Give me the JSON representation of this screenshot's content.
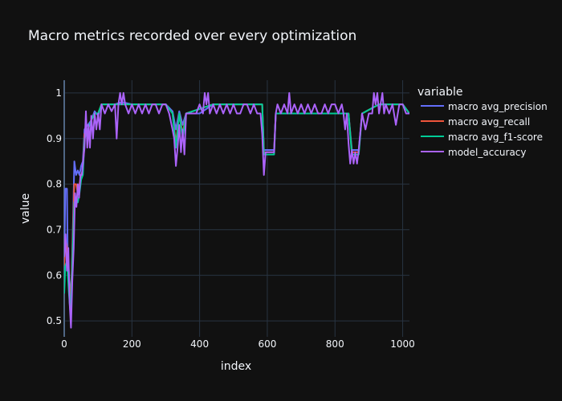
{
  "chart_data": {
    "type": "line",
    "title": "Macro metrics recorded over every optimization",
    "xlabel": "index",
    "ylabel": "value",
    "xlim": [
      0,
      1020
    ],
    "ylim": [
      0.465,
      1.028
    ],
    "x_ticks": [
      0,
      200,
      400,
      600,
      800,
      1000
    ],
    "y_ticks": [
      0.5,
      0.6,
      0.7,
      0.8,
      0.9,
      1
    ],
    "grid": true,
    "legend_title": "variable",
    "legend_position": "right",
    "colors": {
      "background": "#111111",
      "plot_bg": "#111111",
      "grid": "#283442",
      "text": "#f2f5fa"
    },
    "series": [
      {
        "name": "macro avg_precision",
        "color": "#636efa",
        "points": [
          [
            0,
            0.6
          ],
          [
            3,
            0.79
          ],
          [
            8,
            0.79
          ],
          [
            10,
            0.66
          ],
          [
            14,
            0.6
          ],
          [
            18,
            0.55
          ],
          [
            22,
            0.6
          ],
          [
            26,
            0.72
          ],
          [
            30,
            0.85
          ],
          [
            35,
            0.82
          ],
          [
            40,
            0.83
          ],
          [
            45,
            0.82
          ],
          [
            50,
            0.84
          ],
          [
            55,
            0.85
          ],
          [
            60,
            0.92
          ],
          [
            70,
            0.93
          ],
          [
            80,
            0.94
          ],
          [
            90,
            0.96
          ],
          [
            100,
            0.95
          ],
          [
            110,
            0.975
          ],
          [
            130,
            0.975
          ],
          [
            150,
            0.975
          ],
          [
            170,
            0.98
          ],
          [
            200,
            0.975
          ],
          [
            260,
            0.975
          ],
          [
            300,
            0.975
          ],
          [
            320,
            0.96
          ],
          [
            330,
            0.92
          ],
          [
            340,
            0.96
          ],
          [
            350,
            0.93
          ],
          [
            360,
            0.955
          ],
          [
            400,
            0.955
          ],
          [
            440,
            0.975
          ],
          [
            500,
            0.975
          ],
          [
            560,
            0.975
          ],
          [
            585,
            0.975
          ],
          [
            590,
            0.875
          ],
          [
            620,
            0.875
          ],
          [
            625,
            0.955
          ],
          [
            700,
            0.955
          ],
          [
            780,
            0.955
          ],
          [
            840,
            0.955
          ],
          [
            850,
            0.875
          ],
          [
            870,
            0.875
          ],
          [
            880,
            0.955
          ],
          [
            930,
            0.975
          ],
          [
            1000,
            0.975
          ],
          [
            1020,
            0.955
          ]
        ]
      },
      {
        "name": "macro avg_recall",
        "color": "#ef553b",
        "points": [
          [
            0,
            0.62
          ],
          [
            3,
            0.68
          ],
          [
            8,
            0.66
          ],
          [
            10,
            0.63
          ],
          [
            14,
            0.58
          ],
          [
            18,
            0.54
          ],
          [
            22,
            0.6
          ],
          [
            26,
            0.7
          ],
          [
            30,
            0.8
          ],
          [
            35,
            0.8
          ],
          [
            40,
            0.78
          ],
          [
            45,
            0.8
          ],
          [
            50,
            0.82
          ],
          [
            55,
            0.83
          ],
          [
            60,
            0.91
          ],
          [
            70,
            0.92
          ],
          [
            80,
            0.94
          ],
          [
            90,
            0.955
          ],
          [
            100,
            0.955
          ],
          [
            110,
            0.975
          ],
          [
            200,
            0.975
          ],
          [
            300,
            0.975
          ],
          [
            320,
            0.955
          ],
          [
            330,
            0.89
          ],
          [
            340,
            0.955
          ],
          [
            350,
            0.91
          ],
          [
            360,
            0.955
          ],
          [
            440,
            0.975
          ],
          [
            585,
            0.975
          ],
          [
            590,
            0.87
          ],
          [
            620,
            0.87
          ],
          [
            625,
            0.955
          ],
          [
            840,
            0.955
          ],
          [
            850,
            0.87
          ],
          [
            870,
            0.87
          ],
          [
            880,
            0.955
          ],
          [
            930,
            0.975
          ],
          [
            1000,
            0.975
          ],
          [
            1020,
            0.955
          ]
        ]
      },
      {
        "name": "macro avg_f1-score",
        "color": "#00cc96",
        "points": [
          [
            0,
            0.56
          ],
          [
            3,
            0.62
          ],
          [
            8,
            0.63
          ],
          [
            10,
            0.61
          ],
          [
            14,
            0.56
          ],
          [
            18,
            0.52
          ],
          [
            22,
            0.58
          ],
          [
            26,
            0.68
          ],
          [
            30,
            0.76
          ],
          [
            35,
            0.77
          ],
          [
            40,
            0.76
          ],
          [
            45,
            0.78
          ],
          [
            50,
            0.81
          ],
          [
            55,
            0.82
          ],
          [
            60,
            0.9
          ],
          [
            70,
            0.92
          ],
          [
            80,
            0.94
          ],
          [
            90,
            0.955
          ],
          [
            100,
            0.955
          ],
          [
            110,
            0.975
          ],
          [
            200,
            0.975
          ],
          [
            300,
            0.975
          ],
          [
            320,
            0.955
          ],
          [
            330,
            0.88
          ],
          [
            340,
            0.955
          ],
          [
            350,
            0.9
          ],
          [
            360,
            0.955
          ],
          [
            440,
            0.975
          ],
          [
            585,
            0.975
          ],
          [
            590,
            0.865
          ],
          [
            620,
            0.865
          ],
          [
            625,
            0.955
          ],
          [
            840,
            0.955
          ],
          [
            850,
            0.865
          ],
          [
            870,
            0.865
          ],
          [
            880,
            0.955
          ],
          [
            930,
            0.975
          ],
          [
            1000,
            0.975
          ],
          [
            1020,
            0.955
          ]
        ]
      },
      {
        "name": "model_accuracy",
        "color": "#ab63fa",
        "points": [
          [
            0,
            0.64
          ],
          [
            4,
            0.69
          ],
          [
            8,
            0.61
          ],
          [
            12,
            0.66
          ],
          [
            16,
            0.54
          ],
          [
            20,
            0.485
          ],
          [
            24,
            0.59
          ],
          [
            28,
            0.66
          ],
          [
            32,
            0.78
          ],
          [
            36,
            0.75
          ],
          [
            40,
            0.8
          ],
          [
            44,
            0.77
          ],
          [
            48,
            0.82
          ],
          [
            52,
            0.82
          ],
          [
            56,
            0.85
          ],
          [
            60,
            0.88
          ],
          [
            64,
            0.96
          ],
          [
            68,
            0.88
          ],
          [
            72,
            0.93
          ],
          [
            76,
            0.88
          ],
          [
            80,
            0.95
          ],
          [
            85,
            0.9
          ],
          [
            90,
            0.955
          ],
          [
            95,
            0.92
          ],
          [
            100,
            0.955
          ],
          [
            105,
            0.92
          ],
          [
            110,
            0.975
          ],
          [
            120,
            0.955
          ],
          [
            130,
            0.975
          ],
          [
            140,
            0.96
          ],
          [
            150,
            0.975
          ],
          [
            155,
            0.9
          ],
          [
            160,
            0.975
          ],
          [
            165,
            1.0
          ],
          [
            170,
            0.975
          ],
          [
            175,
            1.0
          ],
          [
            180,
            0.975
          ],
          [
            190,
            0.955
          ],
          [
            200,
            0.975
          ],
          [
            210,
            0.955
          ],
          [
            220,
            0.975
          ],
          [
            230,
            0.955
          ],
          [
            240,
            0.975
          ],
          [
            250,
            0.955
          ],
          [
            260,
            0.975
          ],
          [
            270,
            0.975
          ],
          [
            280,
            0.955
          ],
          [
            290,
            0.975
          ],
          [
            300,
            0.975
          ],
          [
            310,
            0.955
          ],
          [
            320,
            0.92
          ],
          [
            325,
            0.9
          ],
          [
            330,
            0.84
          ],
          [
            335,
            0.88
          ],
          [
            340,
            0.93
          ],
          [
            345,
            0.87
          ],
          [
            350,
            0.92
          ],
          [
            355,
            0.865
          ],
          [
            360,
            0.955
          ],
          [
            370,
            0.955
          ],
          [
            380,
            0.955
          ],
          [
            390,
            0.955
          ],
          [
            400,
            0.975
          ],
          [
            410,
            0.955
          ],
          [
            415,
            1.0
          ],
          [
            420,
            0.975
          ],
          [
            425,
            1.0
          ],
          [
            430,
            0.955
          ],
          [
            440,
            0.975
          ],
          [
            450,
            0.955
          ],
          [
            460,
            0.975
          ],
          [
            470,
            0.955
          ],
          [
            480,
            0.975
          ],
          [
            490,
            0.955
          ],
          [
            500,
            0.975
          ],
          [
            510,
            0.955
          ],
          [
            520,
            0.955
          ],
          [
            530,
            0.975
          ],
          [
            540,
            0.975
          ],
          [
            550,
            0.955
          ],
          [
            560,
            0.975
          ],
          [
            570,
            0.955
          ],
          [
            580,
            0.955
          ],
          [
            585,
            0.91
          ],
          [
            590,
            0.82
          ],
          [
            595,
            0.87
          ],
          [
            600,
            0.87
          ],
          [
            610,
            0.87
          ],
          [
            620,
            0.87
          ],
          [
            625,
            0.955
          ],
          [
            630,
            0.975
          ],
          [
            640,
            0.955
          ],
          [
            650,
            0.975
          ],
          [
            660,
            0.955
          ],
          [
            665,
            1.0
          ],
          [
            670,
            0.955
          ],
          [
            680,
            0.975
          ],
          [
            690,
            0.955
          ],
          [
            700,
            0.975
          ],
          [
            710,
            0.955
          ],
          [
            720,
            0.975
          ],
          [
            730,
            0.955
          ],
          [
            740,
            0.975
          ],
          [
            750,
            0.955
          ],
          [
            760,
            0.955
          ],
          [
            770,
            0.975
          ],
          [
            780,
            0.955
          ],
          [
            790,
            0.975
          ],
          [
            800,
            0.975
          ],
          [
            810,
            0.955
          ],
          [
            820,
            0.975
          ],
          [
            825,
            0.955
          ],
          [
            830,
            0.92
          ],
          [
            835,
            0.955
          ],
          [
            840,
            0.89
          ],
          [
            845,
            0.845
          ],
          [
            850,
            0.875
          ],
          [
            855,
            0.845
          ],
          [
            860,
            0.87
          ],
          [
            865,
            0.845
          ],
          [
            870,
            0.875
          ],
          [
            880,
            0.955
          ],
          [
            890,
            0.92
          ],
          [
            900,
            0.955
          ],
          [
            910,
            0.955
          ],
          [
            915,
            1.0
          ],
          [
            920,
            0.975
          ],
          [
            925,
            1.0
          ],
          [
            930,
            0.955
          ],
          [
            940,
            1.0
          ],
          [
            945,
            0.955
          ],
          [
            950,
            0.975
          ],
          [
            960,
            0.955
          ],
          [
            970,
            0.975
          ],
          [
            980,
            0.93
          ],
          [
            990,
            0.975
          ],
          [
            1000,
            0.975
          ],
          [
            1010,
            0.955
          ],
          [
            1020,
            0.955
          ]
        ]
      }
    ]
  }
}
